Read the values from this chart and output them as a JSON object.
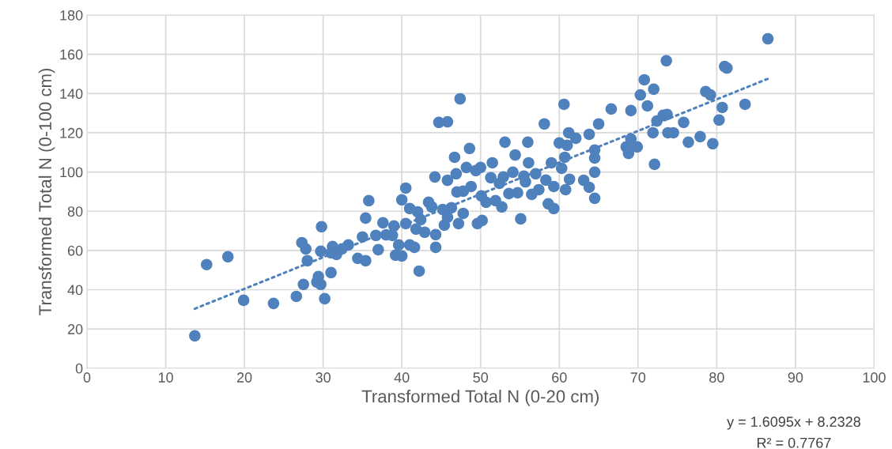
{
  "chart_data": {
    "type": "scatter",
    "xlabel": "Transformed Total N (0-20 cm)",
    "ylabel": "Transformed Total N (0-100 cm)",
    "xlim": [
      0,
      100
    ],
    "xticks": [
      0,
      10,
      20,
      30,
      40,
      50,
      60,
      70,
      80,
      90,
      100
    ],
    "ylim": [
      0,
      180
    ],
    "yticks": [
      0,
      20,
      40,
      60,
      80,
      100,
      120,
      140,
      160,
      180
    ],
    "grid": true,
    "marker": "circle",
    "annotations": [
      "y = 1.6095x + 8.2328",
      "R² = 0.7767"
    ],
    "series": [
      {
        "color": "#4f81bd",
        "x": [
          13.7,
          15.2,
          17.9,
          19.9,
          23.7,
          26.6,
          27.3,
          27.8,
          28.0,
          27.5,
          29.2,
          29.4,
          29.7,
          29.8,
          29.7,
          30.2,
          31.0,
          31.0,
          31.2,
          31.7,
          32.4,
          33.2,
          34.4,
          35.0,
          35.4,
          35.4,
          35.8,
          36.7,
          37.0,
          37.6,
          38.0,
          38.8,
          39.0,
          39.2,
          39.6,
          40.0,
          40.0,
          40.5,
          40.5,
          41.0,
          41.0,
          41.6,
          41.8,
          42.0,
          42.2,
          42.4,
          42.9,
          43.4,
          43.8,
          44.2,
          44.3,
          44.3,
          44.7,
          45.8,
          45.2,
          45.4,
          45.8,
          45.8,
          46.3,
          46.7,
          47.0,
          46.9,
          47.4,
          47.2,
          47.8,
          47.8,
          48.2,
          48.6,
          48.8,
          49.4,
          49.6,
          50.0,
          50.1,
          50.2,
          50.7,
          51.3,
          51.5,
          51.9,
          52.4,
          52.7,
          52.9,
          53.1,
          53.6,
          54.1,
          54.4,
          54.7,
          55.1,
          55.5,
          55.7,
          56.0,
          56.1,
          56.5,
          57.0,
          57.4,
          58.1,
          58.3,
          58.6,
          59.0,
          59.3,
          59.3,
          60.0,
          60.3,
          60.6,
          60.7,
          60.8,
          61.0,
          61.2,
          61.3,
          62.1,
          63.1,
          63.8,
          63.8,
          64.5,
          64.5,
          64.5,
          64.5,
          65.0,
          66.6,
          68.5,
          68.8,
          69.1,
          69.1,
          69.9,
          70.3,
          70.8,
          71.2,
          71.9,
          72.0,
          72.1,
          72.4,
          73.2,
          73.6,
          73.7,
          73.8,
          74.5,
          75.8,
          76.4,
          77.9,
          78.6,
          79.2,
          79.5,
          80.3,
          80.7,
          81.0,
          81.3,
          83.6,
          86.5
        ],
        "values": [
          16.5,
          52.8,
          56.8,
          34.6,
          33.0,
          36.6,
          64,
          60.8,
          54.8,
          42.7,
          43.9,
          46.7,
          59.6,
          72.1,
          42.7,
          35.4,
          48.7,
          58.8,
          62,
          58,
          60.8,
          62.8,
          56,
          66.9,
          54.8,
          76.5,
          85.4,
          67.7,
          60.4,
          74.1,
          68,
          67.7,
          72.5,
          57.6,
          62.8,
          57.2,
          85.8,
          91.8,
          73.7,
          81.4,
          62.8,
          61.6,
          70.9,
          79.7,
          49.5,
          75.7,
          69.3,
          84.6,
          82.2,
          97.5,
          68.1,
          61.6,
          125.3,
          125.6,
          80.9,
          72.9,
          76.9,
          95.8,
          81.8,
          107.5,
          89.8,
          99.1,
          137.3,
          73.7,
          78.9,
          90.2,
          102.3,
          112,
          92.6,
          100.7,
          73.7,
          102.3,
          87.8,
          75.3,
          84.6,
          97.1,
          104.7,
          85.4,
          94.2,
          82.2,
          97.5,
          115.2,
          89,
          99.9,
          108.7,
          89.4,
          76.1,
          97.9,
          95.0,
          115.2,
          104.7,
          88.6,
          99.1,
          91.0,
          124.5,
          95.9,
          83.8,
          104.7,
          81.4,
          92.6,
          114.8,
          101.9,
          134.5,
          107.5,
          91.0,
          113.6,
          120,
          96.3,
          117.2,
          95.8,
          92.2,
          119.2,
          111.2,
          107.1,
          99.9,
          86.6,
          124.5,
          132.1,
          112.8,
          109.5,
          131.3,
          116.8,
          112.8,
          139.3,
          147,
          133.7,
          120,
          142.2,
          103.9,
          126,
          128.9,
          156.7,
          129.3,
          120,
          120,
          125.3,
          115.2,
          118,
          141,
          139.3,
          114.4,
          126.5,
          132.9,
          153.8,
          153,
          134.5,
          167.9
        ]
      },
      {
        "type": "line",
        "color": "#4f81bd",
        "line_style": "dotted",
        "marker": "none",
        "x": [
          13.7,
          86.5
        ],
        "values": [
          30.3,
          147.5
        ]
      }
    ]
  }
}
